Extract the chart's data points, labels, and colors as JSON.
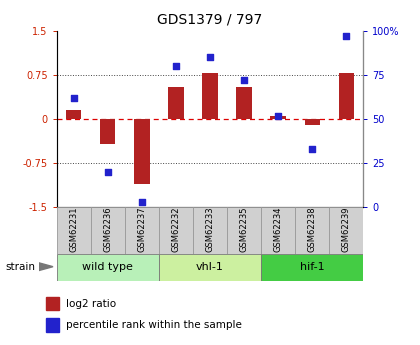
{
  "title": "GDS1379 / 797",
  "samples": [
    "GSM62231",
    "GSM62236",
    "GSM62237",
    "GSM62232",
    "GSM62233",
    "GSM62235",
    "GSM62234",
    "GSM62238",
    "GSM62239"
  ],
  "log2_ratio": [
    0.15,
    -0.42,
    -1.1,
    0.55,
    0.78,
    0.55,
    0.06,
    -0.1,
    0.78
  ],
  "percentile": [
    62,
    20,
    3,
    80,
    85,
    72,
    52,
    33,
    97
  ],
  "groups": [
    {
      "label": "wild type",
      "start": 0,
      "end": 3,
      "color": "#b8f0b8"
    },
    {
      "label": "vhl-1",
      "start": 3,
      "end": 6,
      "color": "#ccf0a0"
    },
    {
      "label": "hif-1",
      "start": 6,
      "end": 9,
      "color": "#44cc44"
    }
  ],
  "ylim_left": [
    -1.5,
    1.5
  ],
  "yticks_left": [
    -1.5,
    -0.75,
    0.0,
    0.75,
    1.5
  ],
  "ytick_labels_left": [
    "-1.5",
    "-0.75",
    "0",
    "0.75",
    "1.5"
  ],
  "ylim_right": [
    0,
    100
  ],
  "yticks_right": [
    0,
    25,
    50,
    75,
    100
  ],
  "ytick_labels_right": [
    "0",
    "25",
    "50",
    "75",
    "100%"
  ],
  "bar_color": "#b22222",
  "dot_color": "#2222cc",
  "hline_color": "#dd0000",
  "dotted_color": "#444444",
  "title_fontsize": 10,
  "tick_fontsize": 7,
  "sample_fontsize": 6,
  "group_fontsize": 8,
  "legend_fontsize": 7.5
}
